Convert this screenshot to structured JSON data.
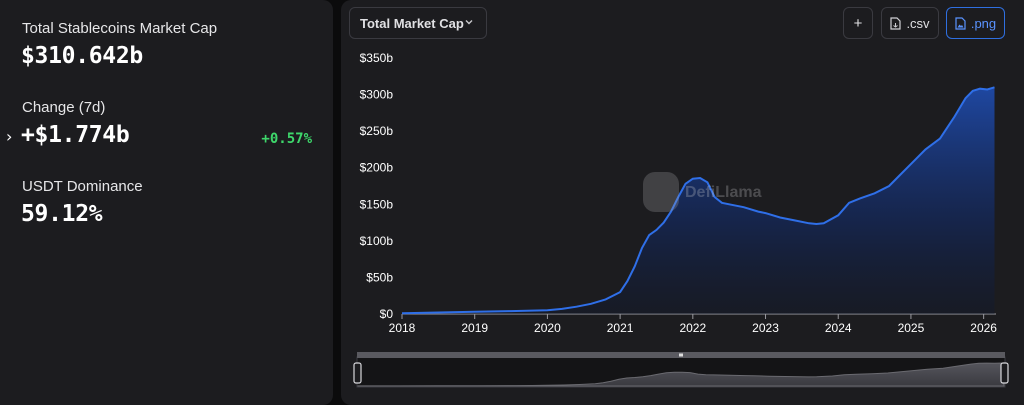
{
  "stats": [
    {
      "label": "Total Stablecoins Market Cap",
      "value": "$310.642b"
    },
    {
      "label": "Change (7d)",
      "value": "+$1.774b",
      "change_pct": "+0.57%"
    },
    {
      "label": "USDT Dominance",
      "value": "59.12%"
    }
  ],
  "toolbar": {
    "dropdown_label": "Total Market Cap",
    "add_label": "+",
    "csv_label": ".csv",
    "png_label": ".png"
  },
  "watermark": "DefiLlama",
  "colors": {
    "line": "#2f6fe8",
    "positive": "#3ed76b",
    "accent": "#2f6fe0"
  },
  "chart_data": {
    "type": "area",
    "y_ticks": [
      "$0",
      "$50b",
      "$100b",
      "$150b",
      "$200b",
      "$250b",
      "$300b",
      "$350b"
    ],
    "x_ticks": [
      "2018",
      "2019",
      "2020",
      "2021",
      "2022",
      "2023",
      "2024",
      "2025",
      "2026"
    ],
    "ylim": [
      0,
      350
    ],
    "xlim": [
      2018.0,
      2026.17
    ],
    "grid": false,
    "x": [
      2018.0,
      2018.5,
      2019.0,
      2019.5,
      2020.0,
      2020.2,
      2020.4,
      2020.6,
      2020.8,
      2021.0,
      2021.1,
      2021.2,
      2021.3,
      2021.4,
      2021.5,
      2021.6,
      2021.7,
      2021.8,
      2021.9,
      2022.0,
      2022.1,
      2022.2,
      2022.3,
      2022.4,
      2022.5,
      2022.7,
      2022.9,
      2023.0,
      2023.2,
      2023.4,
      2023.6,
      2023.7,
      2023.8,
      2024.0,
      2024.15,
      2024.3,
      2024.5,
      2024.7,
      2024.85,
      2025.0,
      2025.2,
      2025.4,
      2025.6,
      2025.75,
      2025.85,
      2025.95,
      2026.05,
      2026.15
    ],
    "y": [
      1,
      2,
      3,
      4,
      5,
      7,
      10,
      14,
      20,
      30,
      45,
      65,
      90,
      108,
      115,
      125,
      140,
      160,
      178,
      185,
      186,
      180,
      160,
      152,
      150,
      146,
      140,
      138,
      132,
      128,
      124,
      123,
      124,
      135,
      152,
      158,
      165,
      175,
      190,
      205,
      225,
      240,
      270,
      295,
      305,
      308,
      307,
      310
    ]
  }
}
